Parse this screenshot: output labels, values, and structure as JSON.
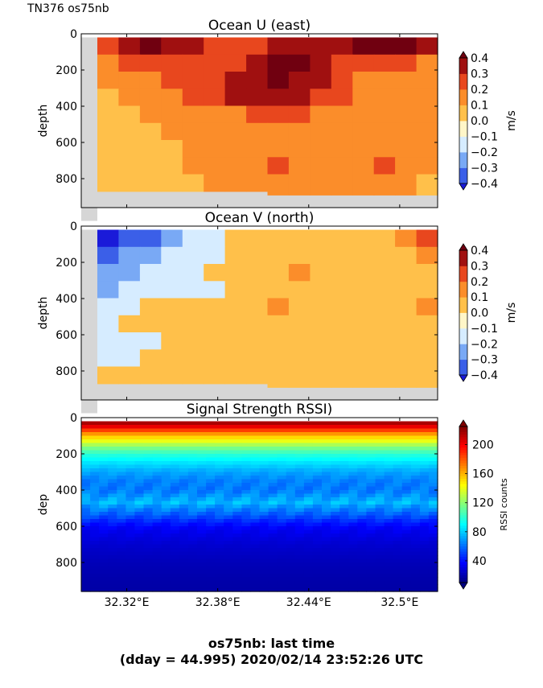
{
  "header": {
    "ship_label": "TN376 os75nb"
  },
  "footer": {
    "line1": "os75nb: last time",
    "line2": "(dday = 44.995) 2020/02/14 23:52:26 UTC"
  },
  "chart_data": [
    {
      "type": "heatmap",
      "title": "Ocean U (east)",
      "ylabel": "depth",
      "ylim": [
        960,
        0
      ],
      "yticks": [
        0,
        200,
        400,
        600,
        800
      ],
      "xlim": [
        32.29,
        32.525
      ],
      "xticks": [
        32.32,
        32.38,
        32.44,
        32.5
      ],
      "colorbar": {
        "label": "m/s",
        "min": -0.4,
        "max": 0.4,
        "ticks": [
          "0.4",
          "0.3",
          "0.2",
          "0.1",
          "0.0",
          "−0.1",
          "−0.2",
          "−0.3",
          "−0.4"
        ],
        "colors": [
          "#1a1ad9",
          "#3b5fe8",
          "#79a9f5",
          "#d6ecff",
          "#fff6c8",
          "#ffc04a",
          "#fb8d2a",
          "#e8471e",
          "#a01010",
          "#700010"
        ]
      },
      "no_data_color": "#d6d6d6",
      "depth_coverage": {
        "top": 20,
        "bottom_range": [
          870,
          890
        ]
      },
      "values": [
        [
          0.2,
          0.3,
          0.4,
          0.3,
          0.3,
          0.2,
          0.2,
          0.2,
          0.3,
          0.3,
          0.3,
          0.3,
          0.4,
          0.4,
          0.4,
          0.3
        ],
        [
          0.1,
          0.2,
          0.2,
          0.2,
          0.2,
          0.2,
          0.2,
          0.3,
          0.4,
          0.4,
          0.3,
          0.2,
          0.2,
          0.2,
          0.2,
          0.1
        ],
        [
          0.1,
          0.1,
          0.1,
          0.2,
          0.2,
          0.2,
          0.3,
          0.3,
          0.4,
          0.3,
          0.3,
          0.2,
          0.1,
          0.1,
          0.1,
          0.1
        ],
        [
          0.0,
          0.1,
          0.1,
          0.1,
          0.2,
          0.2,
          0.3,
          0.3,
          0.3,
          0.3,
          0.2,
          0.2,
          0.1,
          0.1,
          0.1,
          0.1
        ],
        [
          0.0,
          0.0,
          0.1,
          0.1,
          0.1,
          0.1,
          0.1,
          0.2,
          0.2,
          0.2,
          0.1,
          0.1,
          0.1,
          0.1,
          0.1,
          0.1
        ],
        [
          0.0,
          0.0,
          0.0,
          0.1,
          0.1,
          0.1,
          0.1,
          0.1,
          0.1,
          0.1,
          0.1,
          0.1,
          0.1,
          0.1,
          0.1,
          0.1
        ],
        [
          0.0,
          0.0,
          0.0,
          0.0,
          0.1,
          0.1,
          0.1,
          0.1,
          0.1,
          0.1,
          0.1,
          0.1,
          0.1,
          0.1,
          0.1,
          0.1
        ],
        [
          0.0,
          0.0,
          0.0,
          0.0,
          0.1,
          0.1,
          0.1,
          0.1,
          0.2,
          0.1,
          0.1,
          0.1,
          0.1,
          0.2,
          0.1,
          0.1
        ],
        [
          0.0,
          0.0,
          0.0,
          0.0,
          0.0,
          0.1,
          0.1,
          0.1,
          0.1,
          0.1,
          0.1,
          0.1,
          0.1,
          0.1,
          0.1,
          0.0
        ]
      ]
    },
    {
      "type": "heatmap",
      "title": "Ocean V (north)",
      "ylabel": "depth",
      "ylim": [
        960,
        0
      ],
      "yticks": [
        0,
        200,
        400,
        600,
        800
      ],
      "xlim": [
        32.29,
        32.525
      ],
      "xticks": [
        32.32,
        32.38,
        32.44,
        32.5
      ],
      "colorbar": {
        "label": "m/s",
        "min": -0.4,
        "max": 0.4,
        "ticks": [
          "0.4",
          "0.3",
          "0.2",
          "0.1",
          "0.0",
          "−0.1",
          "−0.2",
          "−0.3",
          "−0.4"
        ],
        "colors": [
          "#1a1ad9",
          "#3b5fe8",
          "#79a9f5",
          "#d6ecff",
          "#fff6c8",
          "#ffc04a",
          "#fb8d2a",
          "#e8471e",
          "#a01010",
          "#700010"
        ]
      },
      "no_data_color": "#d6d6d6",
      "depth_coverage": {
        "top": 20,
        "bottom_range": [
          870,
          890
        ]
      },
      "values": [
        [
          -0.4,
          -0.3,
          -0.3,
          -0.2,
          -0.1,
          -0.1,
          0.0,
          0.0,
          0.0,
          0.0,
          0.0,
          0.0,
          0.0,
          0.0,
          0.1,
          0.2
        ],
        [
          -0.3,
          -0.2,
          -0.2,
          -0.1,
          -0.1,
          -0.1,
          0.0,
          0.0,
          0.0,
          0.0,
          0.0,
          0.0,
          0.0,
          0.0,
          0.0,
          0.1
        ],
        [
          -0.2,
          -0.2,
          -0.1,
          -0.1,
          -0.1,
          0.0,
          0.0,
          0.0,
          0.0,
          0.1,
          0.0,
          0.0,
          0.0,
          0.0,
          0.0,
          0.0
        ],
        [
          -0.2,
          -0.1,
          -0.1,
          -0.1,
          -0.1,
          -0.1,
          0.0,
          0.0,
          0.0,
          0.0,
          0.0,
          0.0,
          0.0,
          0.0,
          0.0,
          0.0
        ],
        [
          -0.1,
          -0.1,
          0.0,
          0.0,
          0.0,
          0.0,
          0.0,
          0.0,
          0.1,
          0.0,
          0.0,
          0.0,
          0.0,
          0.0,
          0.0,
          0.1
        ],
        [
          -0.1,
          0.0,
          0.0,
          0.0,
          0.0,
          0.0,
          0.0,
          0.0,
          0.0,
          0.0,
          0.0,
          0.0,
          0.0,
          0.0,
          0.0,
          0.0
        ],
        [
          -0.1,
          -0.1,
          -0.1,
          0.0,
          0.0,
          0.0,
          0.0,
          0.0,
          0.0,
          0.0,
          0.0,
          0.0,
          0.0,
          0.0,
          0.0,
          0.0
        ],
        [
          -0.1,
          -0.1,
          0.0,
          0.0,
          0.0,
          0.0,
          0.0,
          0.0,
          0.0,
          0.0,
          0.0,
          0.0,
          0.0,
          0.0,
          0.0,
          0.0
        ],
        [
          0.0,
          0.0,
          0.0,
          0.0,
          0.0,
          0.0,
          0.0,
          0.0,
          0.0,
          0.0,
          0.0,
          0.0,
          0.0,
          0.0,
          0.0,
          0.0
        ]
      ]
    },
    {
      "type": "heatmap",
      "title": "Signal Strength RSSI)",
      "ylabel": "dep",
      "ylim": [
        960,
        0
      ],
      "yticks": [
        0,
        200,
        400,
        600,
        800
      ],
      "xlim": [
        32.29,
        32.525
      ],
      "xticks": [
        32.32,
        32.38,
        32.44,
        32.5
      ],
      "xticklabels": [
        "32.32°E",
        "32.38°E",
        "32.44°E",
        "32.5°E"
      ],
      "colorbar": {
        "label": "RSSI counts",
        "min": 10,
        "max": 225,
        "ticks": [
          "200",
          "160",
          "120",
          "80",
          "40"
        ],
        "tick_values": [
          200,
          160,
          120,
          80,
          40
        ]
      },
      "depth_profile": [
        {
          "depth": 20,
          "value": 222
        },
        {
          "depth": 40,
          "value": 210
        },
        {
          "depth": 60,
          "value": 195
        },
        {
          "depth": 80,
          "value": 175
        },
        {
          "depth": 100,
          "value": 158
        },
        {
          "depth": 130,
          "value": 140
        },
        {
          "depth": 160,
          "value": 120
        },
        {
          "depth": 200,
          "value": 100
        },
        {
          "depth": 250,
          "value": 85
        },
        {
          "depth": 300,
          "value": 72
        },
        {
          "depth": 350,
          "value": 64
        },
        {
          "depth": 400,
          "value": 62
        },
        {
          "depth": 440,
          "value": 70
        },
        {
          "depth": 470,
          "value": 76
        },
        {
          "depth": 500,
          "value": 66
        },
        {
          "depth": 540,
          "value": 55
        },
        {
          "depth": 580,
          "value": 42
        },
        {
          "depth": 620,
          "value": 34
        },
        {
          "depth": 700,
          "value": 27
        },
        {
          "depth": 800,
          "value": 22
        },
        {
          "depth": 900,
          "value": 19
        },
        {
          "depth": 960,
          "value": 18
        }
      ]
    }
  ]
}
